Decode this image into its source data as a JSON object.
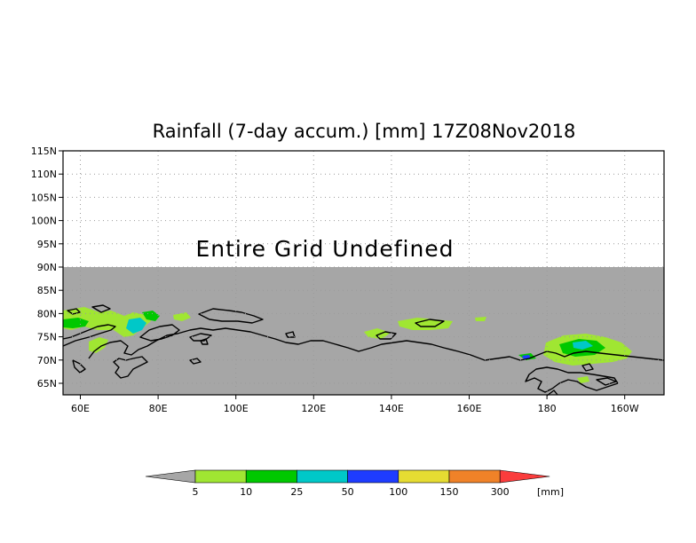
{
  "title": "Rainfall (7-day accum.) [mm] 17Z08Nov2018",
  "message": "Entire Grid Undefined",
  "lat_labels": [
    "115N",
    "110N",
    "105N",
    "100N",
    "95N",
    "90N",
    "85N",
    "80N",
    "75N",
    "70N",
    "65N"
  ],
  "lon_labels": [
    "60E",
    "80E",
    "100E",
    "120E",
    "140E",
    "160E",
    "180",
    "160W"
  ],
  "legend": {
    "unit": "[mm]",
    "thresholds": [
      "5",
      "10",
      "25",
      "50",
      "100",
      "150",
      "300"
    ],
    "colors": {
      "below": "#a6a6a6",
      "bins": [
        "#a0e632",
        "#00c800",
        "#00c8c8",
        "#1e3cff",
        "#e6dc32",
        "#f08228"
      ],
      "above": "#fa3c3c"
    }
  },
  "colors": {
    "undefined_area": "#ffffff",
    "no_rain": "#a6a6a6",
    "coastline": "#000000"
  }
}
